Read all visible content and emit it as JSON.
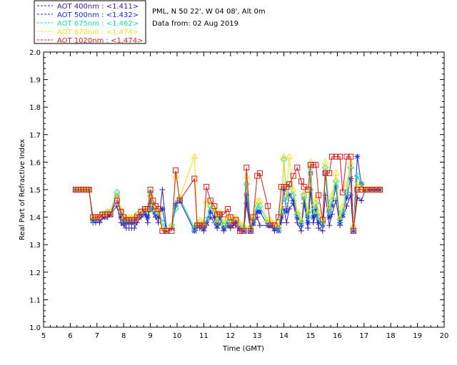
{
  "header": {
    "site": "PML, N 50 22', W 04 08', Alt 0m",
    "date": "Data from: 02 Aug 2019"
  },
  "legend": [
    {
      "label": "AOT  400nm : <1.411>",
      "color": "#3a1a9a",
      "marker": "plus"
    },
    {
      "label": "AOT  500nm : <1.432>",
      "color": "#1a2bd8",
      "marker": "asterisk"
    },
    {
      "label": "AOT  675nm : <1.462>",
      "color": "#19d8a8",
      "marker": "diamond"
    },
    {
      "label": "AOT  870nm : <1.474>",
      "color": "#f0e020",
      "marker": "triangle"
    },
    {
      "label": "AOT 1020nm : <1.474>",
      "color": "#e01818",
      "marker": "square"
    }
  ],
  "chart_data": {
    "type": "line",
    "title": "",
    "xlabel": "Time (GMT)",
    "ylabel": "Real Part of Refractive Index",
    "xlim": [
      5,
      20
    ],
    "ylim": [
      1.0,
      2.0
    ],
    "xticks": [
      "5",
      "6",
      "7",
      "8",
      "9",
      "10",
      "11",
      "12",
      "13",
      "14",
      "15",
      "16",
      "17",
      "18",
      "19",
      "20"
    ],
    "yticks": [
      "1.0",
      "1.1",
      "1.2",
      "1.3",
      "1.4",
      "1.5",
      "1.6",
      "1.7",
      "1.8",
      "1.9",
      "2.0"
    ],
    "series": [
      {
        "name": "AOT 400nm",
        "color": "#3a1a9a",
        "marker": "plus",
        "x": [
          6.2,
          6.3,
          6.4,
          6.5,
          6.6,
          6.7,
          6.85,
          6.95,
          7.1,
          7.2,
          7.3,
          7.4,
          7.5,
          7.75,
          7.9,
          8.0,
          8.1,
          8.2,
          8.3,
          8.4,
          8.5,
          8.65,
          8.8,
          8.9,
          9.0,
          9.1,
          9.2,
          9.3,
          9.45,
          9.6,
          9.8,
          9.95,
          10.1,
          10.65,
          10.75,
          10.85,
          11.0,
          11.1,
          11.25,
          11.4,
          11.5,
          11.6,
          11.75,
          11.9,
          12.0,
          12.1,
          12.2,
          12.35,
          12.5,
          12.6,
          12.75,
          12.85,
          13.0,
          13.1,
          13.4,
          13.5,
          13.65,
          13.8,
          13.9,
          14.0,
          14.1,
          14.2,
          14.35,
          14.5,
          14.65,
          14.75,
          14.9,
          15.0,
          15.1,
          15.2,
          15.3,
          15.45,
          15.55,
          15.7,
          15.8,
          15.95,
          16.1,
          16.2,
          16.35,
          16.5,
          16.6,
          16.75,
          16.9,
          17.05,
          17.15,
          17.3,
          17.45,
          17.6
        ],
        "y": [
          1.5,
          1.5,
          1.5,
          1.5,
          1.5,
          1.5,
          1.38,
          1.38,
          1.38,
          1.4,
          1.4,
          1.4,
          1.41,
          1.44,
          1.38,
          1.37,
          1.36,
          1.36,
          1.36,
          1.36,
          1.38,
          1.4,
          1.41,
          1.38,
          1.45,
          1.42,
          1.4,
          1.38,
          1.5,
          1.36,
          1.36,
          1.45,
          1.46,
          1.35,
          1.36,
          1.36,
          1.35,
          1.37,
          1.4,
          1.38,
          1.36,
          1.38,
          1.35,
          1.37,
          1.36,
          1.37,
          1.37,
          1.35,
          1.35,
          1.45,
          1.35,
          1.37,
          1.4,
          1.37,
          1.37,
          1.37,
          1.35,
          1.36,
          1.38,
          1.43,
          1.38,
          1.43,
          1.45,
          1.38,
          1.35,
          1.45,
          1.36,
          1.5,
          1.38,
          1.41,
          1.36,
          1.35,
          1.48,
          1.37,
          1.41,
          1.46,
          1.37,
          1.4,
          1.44,
          1.48,
          1.35,
          1.47,
          1.46,
          1.5,
          1.5,
          1.5,
          1.5,
          1.5
        ]
      },
      {
        "name": "AOT 500nm",
        "color": "#1a2bd8",
        "marker": "asterisk",
        "x": [
          6.2,
          6.3,
          6.4,
          6.5,
          6.6,
          6.7,
          6.85,
          6.95,
          7.1,
          7.2,
          7.3,
          7.4,
          7.5,
          7.75,
          7.9,
          8.0,
          8.1,
          8.2,
          8.3,
          8.4,
          8.5,
          8.65,
          8.8,
          8.9,
          9.0,
          9.1,
          9.2,
          9.3,
          9.45,
          9.6,
          9.8,
          9.95,
          10.1,
          10.65,
          10.75,
          10.85,
          11.0,
          11.1,
          11.25,
          11.4,
          11.5,
          11.6,
          11.75,
          11.9,
          12.0,
          12.1,
          12.2,
          12.35,
          12.5,
          12.6,
          12.75,
          12.85,
          13.0,
          13.1,
          13.4,
          13.5,
          13.65,
          13.8,
          13.9,
          14.0,
          14.1,
          14.2,
          14.35,
          14.5,
          14.65,
          14.75,
          14.9,
          15.0,
          15.1,
          15.2,
          15.3,
          15.45,
          15.55,
          15.7,
          15.8,
          15.95,
          16.1,
          16.2,
          16.35,
          16.5,
          16.6,
          16.75,
          16.9,
          17.05,
          17.15,
          17.3,
          17.45,
          17.6
        ],
        "y": [
          1.5,
          1.5,
          1.5,
          1.5,
          1.5,
          1.5,
          1.39,
          1.39,
          1.39,
          1.4,
          1.4,
          1.41,
          1.41,
          1.48,
          1.4,
          1.38,
          1.38,
          1.38,
          1.38,
          1.38,
          1.4,
          1.41,
          1.42,
          1.4,
          1.48,
          1.43,
          1.41,
          1.4,
          1.43,
          1.35,
          1.36,
          1.44,
          1.46,
          1.35,
          1.37,
          1.37,
          1.36,
          1.38,
          1.42,
          1.4,
          1.37,
          1.4,
          1.36,
          1.38,
          1.37,
          1.38,
          1.38,
          1.36,
          1.35,
          1.48,
          1.35,
          1.38,
          1.42,
          1.42,
          1.37,
          1.37,
          1.36,
          1.35,
          1.4,
          1.5,
          1.42,
          1.48,
          1.46,
          1.4,
          1.37,
          1.47,
          1.38,
          1.56,
          1.4,
          1.43,
          1.38,
          1.37,
          1.56,
          1.4,
          1.44,
          1.51,
          1.38,
          1.41,
          1.47,
          1.54,
          1.35,
          1.62,
          1.52,
          1.5,
          1.5,
          1.5,
          1.5,
          1.5
        ]
      },
      {
        "name": "AOT 675nm",
        "color": "#19d8a8",
        "marker": "diamond",
        "x": [
          6.2,
          6.3,
          6.4,
          6.5,
          6.6,
          6.7,
          6.85,
          6.95,
          7.1,
          7.2,
          7.3,
          7.4,
          7.5,
          7.75,
          7.9,
          8.0,
          8.1,
          8.2,
          8.3,
          8.4,
          8.5,
          8.65,
          8.8,
          8.9,
          9.0,
          9.1,
          9.2,
          9.3,
          9.45,
          9.6,
          9.8,
          9.95,
          10.1,
          10.65,
          10.75,
          10.85,
          11.0,
          11.1,
          11.25,
          11.4,
          11.5,
          11.6,
          11.75,
          11.9,
          12.0,
          12.1,
          12.2,
          12.35,
          12.5,
          12.6,
          12.75,
          12.85,
          13.0,
          13.1,
          13.4,
          13.5,
          13.65,
          13.8,
          13.9,
          14.0,
          14.1,
          14.2,
          14.35,
          14.5,
          14.65,
          14.75,
          14.9,
          15.0,
          15.1,
          15.2,
          15.3,
          15.45,
          15.55,
          15.7,
          15.8,
          15.95,
          16.1,
          16.2,
          16.35,
          16.5,
          16.6,
          16.75,
          16.9,
          17.05,
          17.15,
          17.3,
          17.45,
          17.6
        ],
        "y": [
          1.5,
          1.5,
          1.5,
          1.5,
          1.5,
          1.5,
          1.39,
          1.4,
          1.4,
          1.41,
          1.41,
          1.42,
          1.42,
          1.49,
          1.42,
          1.39,
          1.39,
          1.39,
          1.39,
          1.39,
          1.41,
          1.42,
          1.43,
          1.42,
          1.49,
          1.44,
          1.42,
          1.42,
          1.38,
          1.35,
          1.37,
          1.43,
          1.47,
          1.36,
          1.37,
          1.38,
          1.37,
          1.39,
          1.44,
          1.42,
          1.38,
          1.41,
          1.37,
          1.39,
          1.38,
          1.39,
          1.39,
          1.37,
          1.36,
          1.52,
          1.36,
          1.39,
          1.44,
          1.44,
          1.38,
          1.38,
          1.37,
          1.36,
          1.42,
          1.61,
          1.46,
          1.52,
          1.48,
          1.41,
          1.38,
          1.48,
          1.4,
          1.58,
          1.42,
          1.45,
          1.4,
          1.38,
          1.58,
          1.42,
          1.46,
          1.53,
          1.39,
          1.42,
          1.49,
          1.58,
          1.36,
          1.55,
          1.52,
          1.5,
          1.5,
          1.5,
          1.5,
          1.5
        ]
      },
      {
        "name": "AOT 870nm",
        "color": "#f0e020",
        "marker": "triangle",
        "x": [
          6.2,
          6.3,
          6.4,
          6.5,
          6.6,
          6.7,
          6.85,
          6.95,
          7.1,
          7.2,
          7.3,
          7.4,
          7.5,
          7.75,
          7.9,
          8.0,
          8.1,
          8.2,
          8.3,
          8.4,
          8.5,
          8.65,
          8.8,
          8.9,
          9.0,
          9.1,
          9.2,
          9.3,
          9.45,
          9.6,
          9.8,
          9.95,
          10.1,
          10.65,
          10.75,
          10.85,
          11.0,
          11.1,
          11.25,
          11.4,
          11.5,
          11.6,
          11.75,
          11.9,
          12.0,
          12.1,
          12.2,
          12.35,
          12.5,
          12.6,
          12.75,
          12.85,
          13.0,
          13.1,
          13.4,
          13.5,
          13.65,
          13.8,
          13.9,
          14.0,
          14.1,
          14.2,
          14.35,
          14.5,
          14.65,
          14.75,
          14.9,
          15.0,
          15.1,
          15.2,
          15.3,
          15.45,
          15.55,
          15.7,
          15.8,
          15.95,
          16.1,
          16.2,
          16.35,
          16.5,
          16.6,
          16.75,
          16.9,
          17.05,
          17.15,
          17.3,
          17.45,
          17.6
        ],
        "y": [
          1.5,
          1.5,
          1.5,
          1.5,
          1.5,
          1.5,
          1.4,
          1.4,
          1.4,
          1.41,
          1.41,
          1.42,
          1.42,
          1.48,
          1.43,
          1.4,
          1.4,
          1.4,
          1.4,
          1.4,
          1.41,
          1.42,
          1.43,
          1.43,
          1.48,
          1.45,
          1.43,
          1.42,
          1.36,
          1.35,
          1.37,
          1.55,
          1.47,
          1.62,
          1.38,
          1.39,
          1.38,
          1.46,
          1.45,
          1.43,
          1.39,
          1.42,
          1.38,
          1.4,
          1.39,
          1.4,
          1.4,
          1.38,
          1.37,
          1.55,
          1.37,
          1.4,
          1.46,
          1.46,
          1.39,
          1.39,
          1.38,
          1.37,
          1.44,
          1.62,
          1.48,
          1.62,
          1.5,
          1.42,
          1.39,
          1.49,
          1.42,
          1.6,
          1.44,
          1.47,
          1.42,
          1.39,
          1.6,
          1.44,
          1.48,
          1.56,
          1.4,
          1.44,
          1.52,
          1.6,
          1.37,
          1.52,
          1.51,
          1.5,
          1.5,
          1.5,
          1.5,
          1.5
        ]
      },
      {
        "name": "AOT 1020nm",
        "color": "#e01818",
        "marker": "square",
        "x": [
          6.2,
          6.3,
          6.4,
          6.5,
          6.6,
          6.7,
          6.85,
          6.95,
          7.1,
          7.2,
          7.3,
          7.4,
          7.5,
          7.75,
          7.9,
          8.0,
          8.1,
          8.2,
          8.3,
          8.4,
          8.5,
          8.65,
          8.8,
          8.9,
          9.0,
          9.1,
          9.2,
          9.3,
          9.45,
          9.6,
          9.8,
          9.95,
          10.1,
          10.65,
          10.75,
          10.85,
          11.0,
          11.1,
          11.25,
          11.4,
          11.5,
          11.6,
          11.75,
          11.9,
          12.0,
          12.1,
          12.2,
          12.35,
          12.5,
          12.6,
          12.75,
          12.85,
          13.0,
          13.1,
          13.4,
          13.5,
          13.65,
          13.8,
          13.9,
          14.0,
          14.1,
          14.2,
          14.35,
          14.5,
          14.65,
          14.75,
          14.9,
          15.0,
          15.1,
          15.2,
          15.3,
          15.45,
          15.55,
          15.7,
          15.8,
          15.95,
          16.1,
          16.2,
          16.35,
          16.5,
          16.6,
          16.75,
          16.9,
          17.05,
          17.15,
          17.3,
          17.45,
          17.6
        ],
        "y": [
          1.5,
          1.5,
          1.5,
          1.5,
          1.5,
          1.5,
          1.4,
          1.4,
          1.4,
          1.41,
          1.41,
          1.41,
          1.41,
          1.46,
          1.42,
          1.4,
          1.39,
          1.39,
          1.39,
          1.39,
          1.4,
          1.42,
          1.43,
          1.43,
          1.5,
          1.46,
          1.44,
          1.43,
          1.35,
          1.35,
          1.35,
          1.57,
          1.46,
          1.54,
          1.37,
          1.37,
          1.37,
          1.51,
          1.46,
          1.44,
          1.41,
          1.41,
          1.41,
          1.43,
          1.4,
          1.37,
          1.39,
          1.35,
          1.35,
          1.58,
          1.35,
          1.4,
          1.55,
          1.56,
          1.44,
          1.37,
          1.37,
          1.4,
          1.51,
          1.51,
          1.51,
          1.52,
          1.55,
          1.58,
          1.53,
          1.51,
          1.5,
          1.59,
          1.59,
          1.59,
          1.48,
          1.39,
          1.56,
          1.56,
          1.62,
          1.62,
          1.62,
          1.49,
          1.62,
          1.62,
          1.35,
          1.5,
          1.5,
          1.5,
          1.5,
          1.5,
          1.5,
          1.5
        ]
      }
    ]
  }
}
